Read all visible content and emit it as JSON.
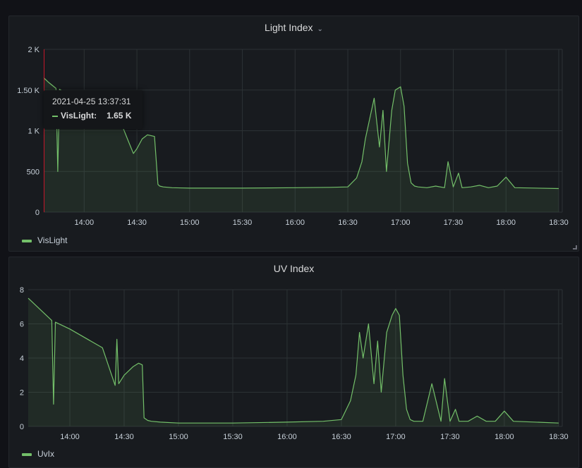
{
  "panels": [
    {
      "title": "Light Index",
      "legend": "VisLight",
      "tooltip": {
        "time": "2021-04-25 13:37:31",
        "series": "VisLight:",
        "value": "1.65 K"
      }
    },
    {
      "title": "UV Index",
      "legend": "UvIx"
    }
  ],
  "colors": {
    "series": "#73bf69",
    "background": "#181b1f",
    "grid": "#2c3235"
  },
  "chart_data": [
    {
      "type": "area",
      "title": "Light Index",
      "series": [
        {
          "name": "VisLight",
          "x": [
            "13:37",
            "13:40",
            "13:44",
            "13:45",
            "13:46",
            "13:50",
            "14:00",
            "14:10",
            "14:20",
            "14:25",
            "14:28",
            "14:30",
            "14:33",
            "14:36",
            "14:40",
            "14:42",
            "14:43",
            "14:45",
            "14:50",
            "15:00",
            "15:30",
            "16:00",
            "16:20",
            "16:30",
            "16:35",
            "16:38",
            "16:40",
            "16:42",
            "16:45",
            "16:48",
            "16:50",
            "16:52",
            "16:55",
            "16:57",
            "17:00",
            "17:02",
            "17:04",
            "17:06",
            "17:08",
            "17:10",
            "17:15",
            "17:20",
            "17:25",
            "17:27",
            "17:30",
            "17:33",
            "17:35",
            "17:40",
            "17:45",
            "17:50",
            "17:55",
            "18:00",
            "18:05",
            "18:30"
          ],
          "values": [
            1650,
            1590,
            1520,
            500,
            1510,
            1450,
            1350,
            1250,
            1150,
            880,
            720,
            780,
            900,
            950,
            930,
            340,
            320,
            310,
            300,
            295,
            295,
            300,
            305,
            310,
            420,
            620,
            900,
            1100,
            1400,
            800,
            1250,
            500,
            1250,
            1500,
            1540,
            1300,
            600,
            360,
            320,
            310,
            300,
            320,
            300,
            620,
            310,
            480,
            300,
            310,
            330,
            300,
            320,
            430,
            300,
            290
          ]
        }
      ],
      "yticks": [
        "0",
        "500",
        "1 K",
        "1.50 K",
        "2 K"
      ],
      "xticks": [
        "14:00",
        "14:30",
        "15:00",
        "15:30",
        "16:00",
        "16:30",
        "17:00",
        "17:30",
        "18:00",
        "18:30"
      ],
      "ylim": [
        0,
        2000
      ],
      "xlim": [
        "13:37",
        "18:32"
      ]
    },
    {
      "type": "area",
      "title": "UV Index",
      "series": [
        {
          "name": "UvIx",
          "x": [
            "13:37",
            "13:50",
            "13:51",
            "13:52",
            "14:00",
            "14:18",
            "14:25",
            "14:26",
            "14:27",
            "14:30",
            "14:35",
            "14:38",
            "14:40",
            "14:41",
            "14:43",
            "14:45",
            "14:50",
            "15:00",
            "15:30",
            "16:00",
            "16:20",
            "16:30",
            "16:35",
            "16:38",
            "16:40",
            "16:42",
            "16:45",
            "16:48",
            "16:50",
            "16:52",
            "16:55",
            "16:58",
            "17:00",
            "17:02",
            "17:04",
            "17:06",
            "17:08",
            "17:10",
            "17:15",
            "17:20",
            "17:25",
            "17:27",
            "17:30",
            "17:33",
            "17:35",
            "17:40",
            "17:45",
            "17:50",
            "17:55",
            "18:00",
            "18:05",
            "18:30"
          ],
          "values": [
            7.5,
            6.2,
            1.3,
            6.1,
            5.7,
            4.6,
            2.4,
            5.1,
            2.5,
            3.0,
            3.5,
            3.7,
            3.6,
            0.5,
            0.35,
            0.3,
            0.25,
            0.2,
            0.2,
            0.25,
            0.3,
            0.4,
            1.5,
            3.0,
            5.5,
            4.0,
            6.0,
            2.5,
            5.0,
            2.0,
            5.5,
            6.5,
            6.9,
            6.5,
            3.0,
            1.0,
            0.4,
            0.3,
            0.3,
            2.5,
            0.3,
            2.8,
            0.3,
            1.0,
            0.3,
            0.3,
            0.6,
            0.3,
            0.3,
            0.9,
            0.3,
            0.2
          ]
        }
      ],
      "yticks": [
        "0",
        "2",
        "4",
        "6",
        "8"
      ],
      "xticks": [
        "14:00",
        "14:30",
        "15:00",
        "15:30",
        "16:00",
        "16:30",
        "17:00",
        "17:30",
        "18:00",
        "18:30"
      ],
      "ylim": [
        0,
        8
      ],
      "xlim": [
        "13:37",
        "18:32"
      ]
    }
  ]
}
